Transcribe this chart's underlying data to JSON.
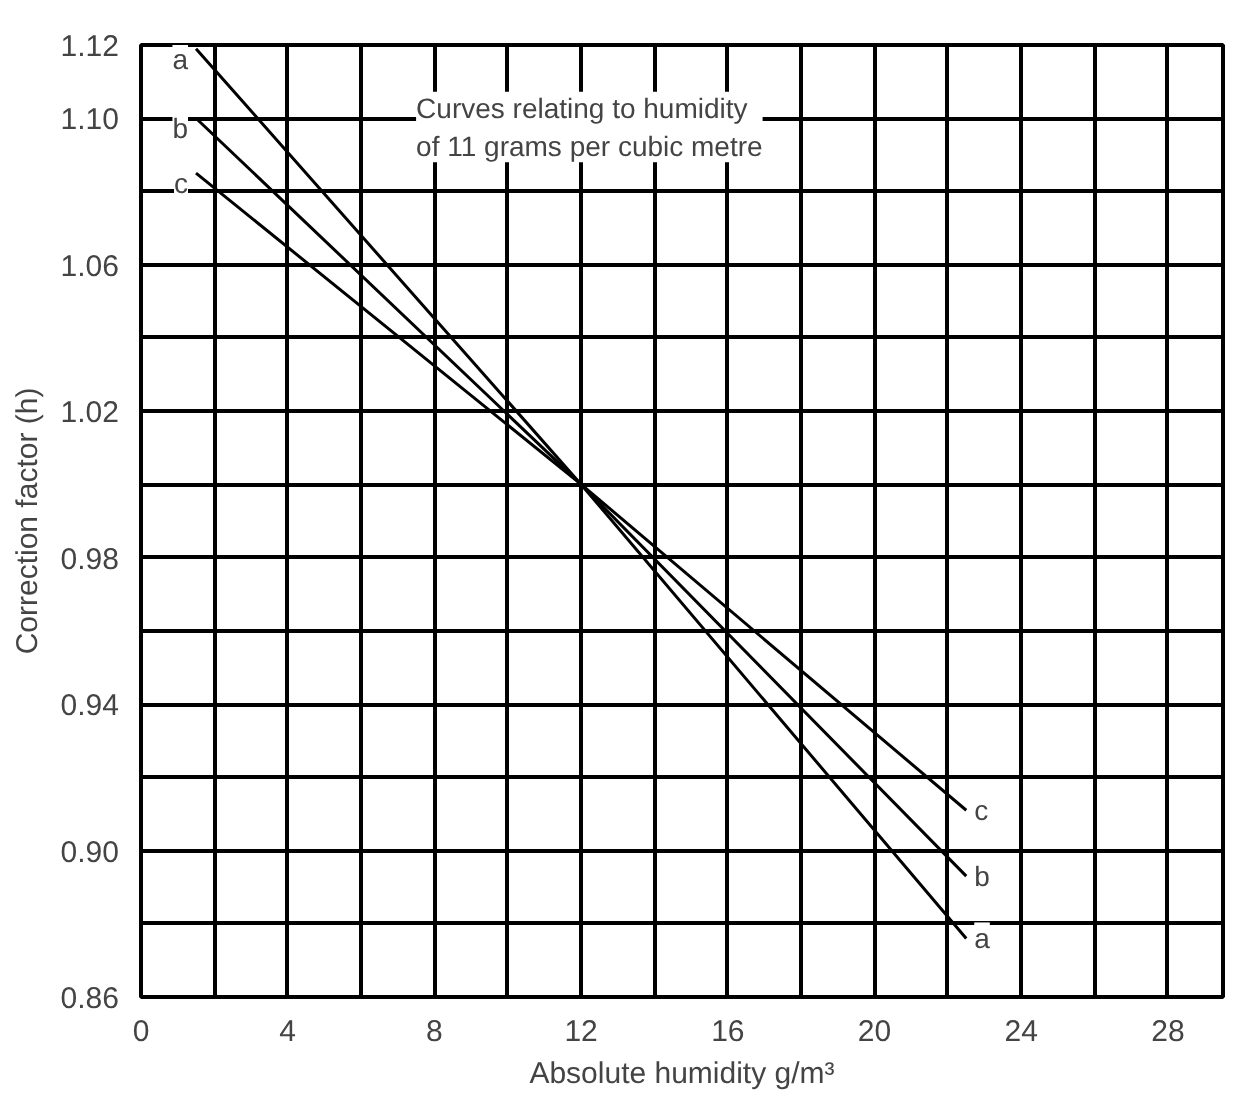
{
  "chart_data": {
    "type": "line",
    "xlabel": "Absolute humidity g/m³",
    "ylabel": "Correction factor (h)",
    "annotations": [
      "Curves relating to humidity\nof 11 grams per cubic metre"
    ],
    "series": [
      {
        "name": "a",
        "color": "#000000",
        "x": [
          1.5,
          12,
          22.5
        ],
        "values": [
          1.119,
          1.0,
          0.876
        ]
      },
      {
        "name": "b",
        "color": "#000000",
        "x": [
          1.5,
          12,
          22.5
        ],
        "values": [
          1.1,
          1.0,
          0.893
        ]
      },
      {
        "name": "c",
        "color": "#000000",
        "x": [
          1.5,
          12,
          22.5
        ],
        "values": [
          1.085,
          1.0,
          0.911
        ]
      }
    ],
    "xlim": [
      0,
      29.5
    ],
    "ylim": [
      0.86,
      1.12
    ],
    "xticks": [
      0,
      {
        "value": 2,
        "label": null
      },
      4,
      {
        "value": 6,
        "label": null
      },
      8,
      {
        "value": 10,
        "label": null
      },
      12,
      {
        "value": 14,
        "label": null
      },
      16,
      {
        "value": 18,
        "label": null
      },
      20,
      {
        "value": 22,
        "label": null
      },
      24,
      {
        "value": 26,
        "label": null
      },
      28
    ],
    "yticks": [
      {
        "value": 0.86,
        "label": "0.86"
      },
      {
        "value": 0.88,
        "label": null
      },
      {
        "value": 0.9,
        "label": "0.90"
      },
      {
        "value": 0.92,
        "label": null
      },
      0.94,
      {
        "value": 0.96,
        "label": null
      },
      0.98,
      {
        "value": 1.0,
        "label": null
      },
      1.02,
      {
        "value": 1.04,
        "label": null
      },
      1.06,
      {
        "value": 1.08,
        "label": null
      },
      {
        "value": 1.1,
        "label": "1.10"
      },
      1.12
    ],
    "grid": true,
    "marker": "none",
    "line_style": "solid"
  }
}
